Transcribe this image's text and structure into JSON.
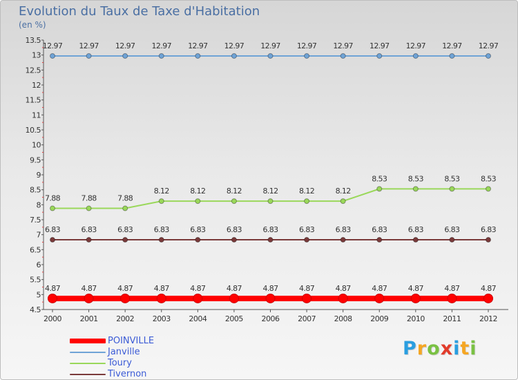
{
  "title": "Evolution du Taux de Taxe d'Habitation",
  "subtitle": "(en %)",
  "logo": {
    "letters": [
      "P",
      "r",
      "o",
      "x",
      "i",
      "t",
      "i"
    ],
    "colors": [
      "#2a9ee0",
      "#f5a623",
      "#7ac143",
      "#e23c2b",
      "#2a9ee0",
      "#f5a623",
      "#7ac143"
    ]
  },
  "chart_data": {
    "type": "line",
    "title": "Evolution du Taux de Taxe d'Habitation",
    "ylabel": "(en %)",
    "x": [
      "2000",
      "2001",
      "2002",
      "2003",
      "2004",
      "2005",
      "2006",
      "2007",
      "2008",
      "2009",
      "2010",
      "2011",
      "2012"
    ],
    "ylim": [
      4.5,
      13.5
    ],
    "yticks": [
      "4.5",
      "5",
      "5.5",
      "6",
      "6.5",
      "7",
      "7.5",
      "8",
      "8.5",
      "9",
      "9.5",
      "10",
      "10.5",
      "11",
      "11.5",
      "12",
      "12.5",
      "13",
      "13.5"
    ],
    "grid": false,
    "legend_position": "bottom-left",
    "series": [
      {
        "name": "POINVILLE",
        "color": "#ff0000",
        "values": [
          4.87,
          4.87,
          4.87,
          4.87,
          4.87,
          4.87,
          4.87,
          4.87,
          4.87,
          4.87,
          4.87,
          4.87,
          4.87
        ],
        "labels": [
          "4.87",
          "4.87",
          "4.87",
          "4.87",
          "4.87",
          "4.87",
          "4.87",
          "4.87",
          "4.87",
          "4.87",
          "4.87",
          "4.87",
          "4.87"
        ],
        "emphasis": "thick"
      },
      {
        "name": "Janville",
        "color": "#6fa3d6",
        "values": [
          12.97,
          12.97,
          12.97,
          12.97,
          12.97,
          12.97,
          12.97,
          12.97,
          12.97,
          12.97,
          12.97,
          12.97,
          12.97
        ],
        "labels": [
          "12.97",
          "12.97",
          "12.97",
          "12.97",
          "12.97",
          "12.97",
          "12.97",
          "12.97",
          "12.97",
          "12.97",
          "12.97",
          "12.97",
          "12.97"
        ],
        "emphasis": "thin"
      },
      {
        "name": "Toury",
        "color": "#9ad85a",
        "values": [
          7.88,
          7.88,
          7.88,
          8.12,
          8.12,
          8.12,
          8.12,
          8.12,
          8.12,
          8.53,
          8.53,
          8.53,
          8.53
        ],
        "labels": [
          "7.88",
          "7.88",
          "7.88",
          "8.12",
          "8.12",
          "8.12",
          "8.12",
          "8.12",
          "8.12",
          "8.53",
          "8.53",
          "8.53",
          "8.53"
        ],
        "emphasis": "thin"
      },
      {
        "name": "Tivernon",
        "color": "#7a3a3a",
        "values": [
          6.83,
          6.83,
          6.83,
          6.83,
          6.83,
          6.83,
          6.83,
          6.83,
          6.83,
          6.83,
          6.83,
          6.83,
          6.83
        ],
        "labels": [
          "6.83",
          "6.83",
          "6.83",
          "6.83",
          "6.83",
          "6.83",
          "6.83",
          "6.83",
          "6.83",
          "6.83",
          "6.83",
          "6.83",
          "6.83"
        ],
        "emphasis": "thin"
      }
    ]
  }
}
